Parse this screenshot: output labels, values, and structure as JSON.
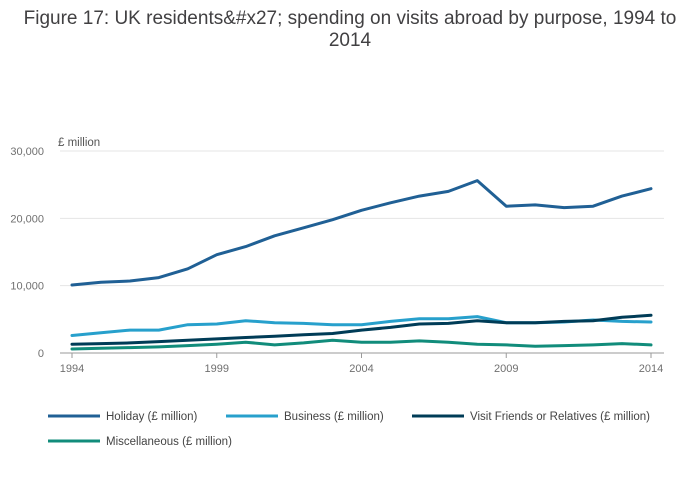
{
  "chart_data": {
    "type": "line",
    "title": "Figure 17: UK residents&#x27; spending on visits abroad by purpose, 1994 to 2014",
    "xlabel": "",
    "ylabel": "£ million",
    "x": [
      1994,
      1995,
      1996,
      1997,
      1998,
      1999,
      2000,
      2001,
      2002,
      2003,
      2004,
      2005,
      2006,
      2007,
      2008,
      2009,
      2010,
      2011,
      2012,
      2013,
      2014
    ],
    "x_ticks": [
      1994,
      1999,
      2004,
      2009,
      2014
    ],
    "y_ticks": [
      0,
      10000,
      20000,
      30000
    ],
    "y_tick_labels": [
      "0",
      "10,000",
      "20,000",
      "30,000"
    ],
    "ylim": [
      0,
      30000
    ],
    "grid": true,
    "legend_position": "bottom",
    "series": [
      {
        "name": "Holiday (£ million)",
        "color": "#206095",
        "values": [
          10100,
          10500,
          10700,
          11200,
          12500,
          14600,
          15800,
          17400,
          18600,
          19800,
          21200,
          22300,
          23300,
          24000,
          25600,
          21800,
          22000,
          21600,
          21800,
          23300,
          24400
        ]
      },
      {
        "name": "Business (£ million)",
        "color": "#27a0cc",
        "values": [
          2600,
          3000,
          3400,
          3400,
          4200,
          4300,
          4800,
          4500,
          4400,
          4200,
          4200,
          4700,
          5100,
          5100,
          5400,
          4500,
          4500,
          4600,
          4900,
          4700,
          4600
        ]
      },
      {
        "name": "Visit Friends or Relatives (£ million)",
        "color": "#003c57",
        "values": [
          1300,
          1400,
          1500,
          1700,
          1900,
          2100,
          2300,
          2500,
          2700,
          2900,
          3400,
          3800,
          4300,
          4400,
          4800,
          4500,
          4500,
          4700,
          4800,
          5300,
          5600
        ]
      },
      {
        "name": "Miscellaneous (£ million)",
        "color": "#118c7b",
        "values": [
          600,
          700,
          800,
          900,
          1100,
          1300,
          1600,
          1200,
          1500,
          1900,
          1600,
          1600,
          1800,
          1600,
          1300,
          1200,
          1000,
          1100,
          1200,
          1400,
          1200
        ]
      }
    ]
  }
}
